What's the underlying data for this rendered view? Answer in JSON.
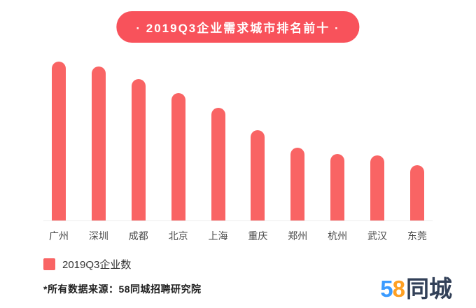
{
  "page": {
    "title_display": "· 2019Q3企业需求城市排名前十 ·"
  },
  "chart_data": {
    "type": "bar",
    "title": "2019Q3企业需求城市排名前十",
    "categories": [
      "广州",
      "深圳",
      "成都",
      "北京",
      "上海",
      "重庆",
      "郑州",
      "杭州",
      "武汉",
      "东莞"
    ],
    "values": [
      100,
      97,
      89,
      80,
      71,
      57,
      46,
      42,
      41,
      35
    ],
    "value_scale": "relative bar heights (max = 100); no numeric axis shown in image",
    "series_name": "2019Q3企业数",
    "legend": [
      "2019Q3企业数"
    ],
    "legend_position": "bottom-left",
    "grid": false,
    "xlabel": "",
    "ylabel": ""
  },
  "legend": {
    "label": "2019Q3企业数"
  },
  "footer": {
    "source_note": "*所有数据来源：58同城招聘研究院"
  },
  "logo": {
    "part1": "5",
    "part2": "8",
    "part3": "同城"
  },
  "colors": {
    "title_bg": "#f8525b",
    "bar": "#f96464",
    "text": "#333333",
    "logo_blue": "#3b9bff",
    "logo_orange": "#ffa023",
    "logo_dark": "#324058"
  }
}
